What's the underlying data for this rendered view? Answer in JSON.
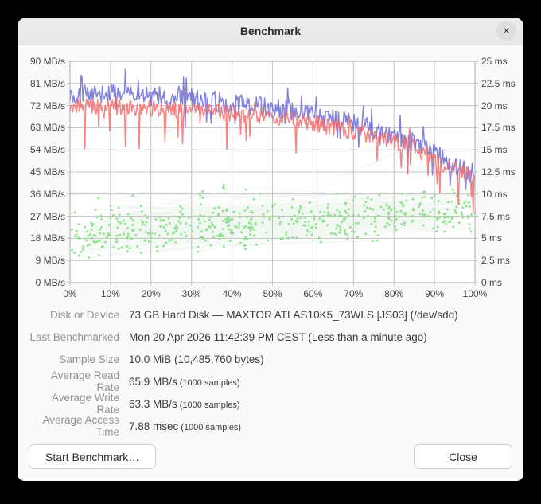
{
  "window": {
    "title": "Benchmark",
    "close_glyph": "×"
  },
  "chart_data": {
    "type": "line+scatter",
    "title": "",
    "grid": true,
    "legend": "none",
    "x_axis": {
      "min": 0,
      "max": 100,
      "unit": "%",
      "tick_labels": [
        "0%",
        "10%",
        "20%",
        "30%",
        "40%",
        "50%",
        "60%",
        "70%",
        "80%",
        "90%",
        "100%"
      ]
    },
    "y_left_axis": {
      "min": 0,
      "max": 90,
      "unit": "MB/s",
      "tick_labels": [
        "90 MB/s",
        "81 MB/s",
        "72 MB/s",
        "63 MB/s",
        "54 MB/s",
        "45 MB/s",
        "36 MB/s",
        "27 MB/s",
        "18 MB/s",
        "9 MB/s",
        "0 MB/s"
      ]
    },
    "y_right_axis": {
      "min": 0,
      "max": 25,
      "unit": "ms",
      "tick_labels": [
        "25 ms",
        "22.5 ms",
        "20 ms",
        "17.5 ms",
        "15 ms",
        "12.5 ms",
        "10 ms",
        "7.5 ms",
        "5 ms",
        "2.5 ms",
        "0 ms"
      ]
    },
    "series": [
      {
        "name": "read-rate",
        "kind": "line",
        "axis": "left",
        "unit": "MB/s",
        "color": "rgba(104,102,214,0.82)",
        "average": 65.9,
        "samples": 1000,
        "seed": 101,
        "points_drawn": 440,
        "noise": 4.2,
        "up_spike_chance": 0.05,
        "up_spike": 8,
        "down_spike_chance": 0.04,
        "down_spike": 9,
        "trend": [
          [
            0,
            77
          ],
          [
            10,
            76.5
          ],
          [
            20,
            76
          ],
          [
            30,
            74.5
          ],
          [
            40,
            73
          ],
          [
            50,
            71
          ],
          [
            60,
            68
          ],
          [
            70,
            64.5
          ],
          [
            78,
            61
          ],
          [
            85,
            57
          ],
          [
            91,
            51
          ],
          [
            96,
            46
          ],
          [
            100,
            44
          ]
        ]
      },
      {
        "name": "write-rate",
        "kind": "line",
        "axis": "left",
        "unit": "MB/s",
        "color": "rgba(243,110,110,0.85)",
        "average": 63.3,
        "samples": 1000,
        "seed": 202,
        "points_drawn": 440,
        "noise": 3.4,
        "up_spike_chance": 0.02,
        "up_spike": 4,
        "down_spike_chance": 0.06,
        "down_spike": 13,
        "trend": [
          [
            0,
            72
          ],
          [
            10,
            71.5
          ],
          [
            20,
            71
          ],
          [
            30,
            70
          ],
          [
            40,
            69
          ],
          [
            50,
            67.5
          ],
          [
            60,
            65
          ],
          [
            70,
            61.5
          ],
          [
            78,
            58.5
          ],
          [
            85,
            55
          ],
          [
            91,
            49
          ],
          [
            96,
            45
          ],
          [
            100,
            43
          ]
        ]
      },
      {
        "name": "access-time",
        "kind": "scatter",
        "axis": "right",
        "unit": "ms",
        "dot_color": "#85de85",
        "web_color": "rgba(125,180,125,0.11)",
        "average": 7.88,
        "samples": 1000,
        "seed": 303,
        "points_drawn": 520,
        "base": 5.4,
        "slope": 2.6,
        "noise": 2.9,
        "outlier_chance": 0.07,
        "outlier": 5.5,
        "min": 1.6,
        "max": 15.6
      }
    ],
    "grid_color": "#c3c3c3",
    "border_color": "#aaaaaa"
  },
  "details": {
    "rows": [
      {
        "label": "Disk or Device",
        "value": "73 GB Hard Disk — MAXTOR ATLAS10K5_73WLS [JS03] (/dev/sdd)",
        "note": ""
      },
      {
        "label": "Last Benchmarked",
        "value": "Mon 20 Apr 2026 11:42:39 PM CEST (Less than a minute ago)",
        "note": ""
      },
      {
        "label": "Sample Size",
        "value": "10.0 MiB (10,485,760 bytes)",
        "note": ""
      },
      {
        "label": "Average Read Rate",
        "value": "65.9 MB/s",
        "note": "(1000 samples)"
      },
      {
        "label": "Average Write Rate",
        "value": "63.3 MB/s",
        "note": "(1000 samples)"
      },
      {
        "label": "Average Access Time",
        "value": "7.88 msec",
        "note": "(1000 samples)"
      }
    ]
  },
  "buttons": {
    "start": {
      "label": "Start Benchmark…",
      "mnemonic": "S"
    },
    "close": {
      "label": "Close",
      "mnemonic": "C"
    }
  }
}
